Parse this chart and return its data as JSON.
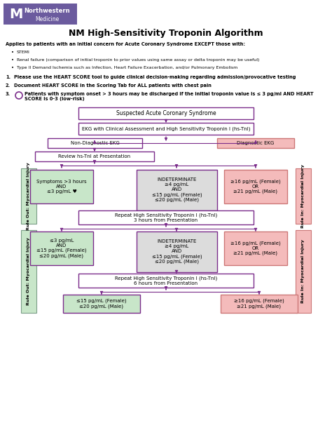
{
  "title": "NM High-Sensitivity Troponin Algorithm",
  "logo_bg": "#6B5B9E",
  "green_bg": "#C8E6C9",
  "green_border": "#7B9E87",
  "pink_bg": "#F4BBBB",
  "pink_dark": "#CC7777",
  "gray_bg": "#DCDCDC",
  "purple_border": "#7B2D8B",
  "purple_light": "#9C6BB5",
  "white_bg": "#FFFFFF",
  "header": "Applies to patients with an initial concern for Acute Coronary Syndrome EXCEPT those with:",
  "bullets": [
    "STEMI",
    "Renal failure (comparison of initial troponin to prior values using same assay or delta troponin may be useful)",
    "Type II Demand Ischemia such as Infection, Heart Failure Exacerbation, and/or Pulmonary Embolism"
  ],
  "num1": "Please use the HEART SCORE tool to guide clinical decision-making regarding admission/provocative testing",
  "num2": "Document HEART SCORE in the Scoring Tab for ALL patients with chest pain",
  "num3": "Patients with symptom onset > 3 hours may be discharged if the initial troponin value is ≤ 3 pg/ml AND HEART SCORE is 0-3 (low-risk)"
}
